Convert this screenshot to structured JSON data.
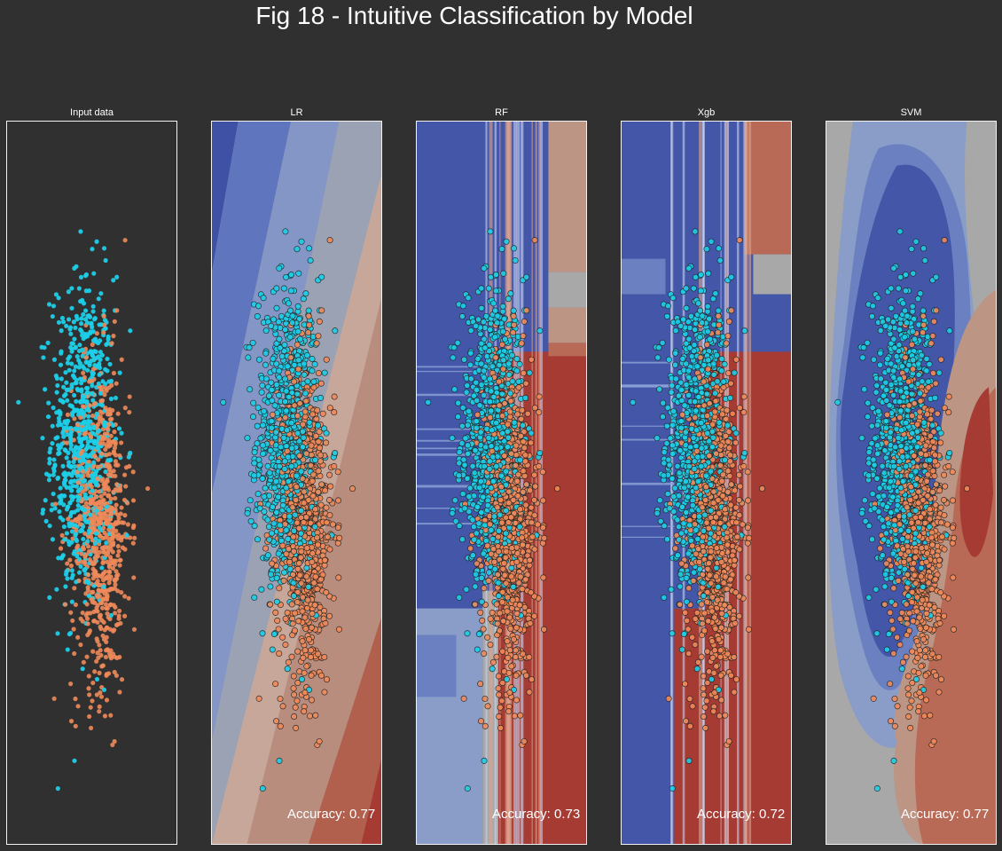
{
  "figure_title": "Fig 18 - Intuitive Classification by Model",
  "colors": {
    "background": "#303030",
    "class0": "#1ccfe8",
    "class1": "#f08a5a",
    "blue_dark": "#4456a8",
    "blue_mid": "#5f76bf",
    "blue_light": "#8a9dc8",
    "neutral": "#a8a8a8",
    "red_light": "#bc9585",
    "red_mid": "#b86a56",
    "red_dark": "#a53b33"
  },
  "panels": [
    {
      "title": "Input data",
      "accuracy": ""
    },
    {
      "title": "LR",
      "accuracy": "Accuracy: 0.77"
    },
    {
      "title": "RF",
      "accuracy": "Accuracy: 0.73"
    },
    {
      "title": "Xgb",
      "accuracy": "Accuracy: 0.72"
    },
    {
      "title": "SVM",
      "accuracy": "Accuracy: 0.77"
    }
  ],
  "chart_data": {
    "type": "scatter",
    "title": "Fig 18 - Intuitive Classification by Model",
    "subplots": [
      "Input data",
      "LR",
      "RF",
      "Xgb",
      "SVM"
    ],
    "axes_ticks": "none",
    "classes": [
      {
        "label": "0",
        "color": "#1ccfe8",
        "center": [
          -0.35,
          0.55
        ],
        "spread": [
          0.6,
          1.1
        ]
      },
      {
        "label": "1",
        "color": "#f08a5a",
        "center": [
          0.35,
          -0.55
        ],
        "spread": [
          0.55,
          1.1
        ]
      }
    ],
    "n_points_per_class": 700,
    "xlim": [
      -3.2,
      3.2
    ],
    "ylim": [
      -4.8,
      4.8
    ],
    "accuracy": {
      "LR": 0.77,
      "RF": 0.73,
      "Xgb": 0.72,
      "SVM": 0.77
    }
  }
}
